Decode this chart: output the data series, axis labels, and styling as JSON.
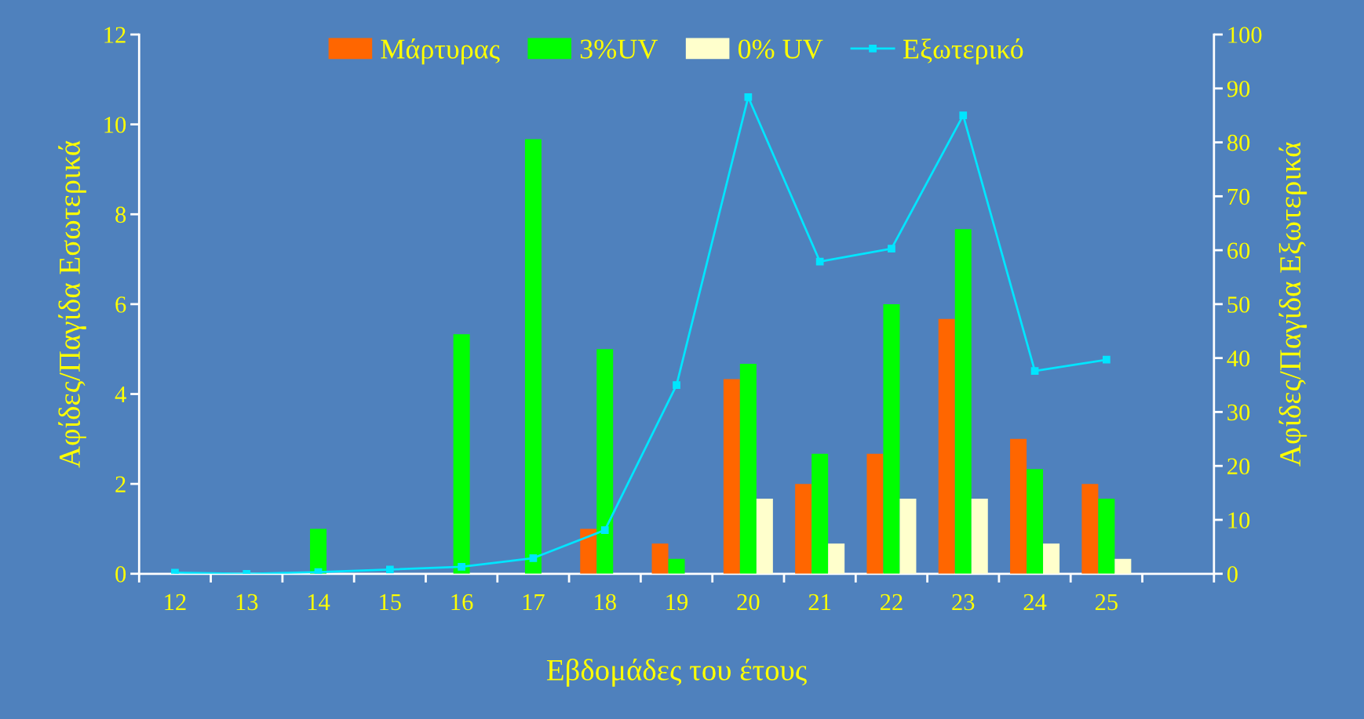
{
  "chart_data": {
    "type": "bar",
    "xlabel": "Εβδομάδες του έτους",
    "ylabel": "Αφίδες/Παγίδα Εσωτερικά",
    "y2label": "Αφίδες/Παγίδα Εξωτερικά",
    "categories": [
      "12",
      "13",
      "14",
      "15",
      "16",
      "17",
      "18",
      "19",
      "20",
      "21",
      "22",
      "23",
      "24",
      "25",
      null
    ],
    "series": [
      {
        "name": "Μάρτυρας",
        "color": "#ff6600",
        "values": [
          null,
          null,
          null,
          null,
          null,
          null,
          1.0,
          0.67,
          4.33,
          2.0,
          2.67,
          5.67,
          3.0,
          2.0,
          null
        ]
      },
      {
        "name": "3%UV",
        "color": "#00ff00",
        "values": [
          null,
          null,
          1.0,
          null,
          5.33,
          9.67,
          5.0,
          0.33,
          4.67,
          2.67,
          6.0,
          7.67,
          2.33,
          1.67,
          null
        ]
      },
      {
        "name": "0% UV",
        "color": "#ffffcc",
        "values": [
          null,
          null,
          null,
          null,
          null,
          null,
          null,
          null,
          1.67,
          0.67,
          1.67,
          1.67,
          0.67,
          0.33,
          null
        ]
      },
      {
        "name": "Εξωτερικό",
        "color": "#00e5ff",
        "type": "line",
        "axis": "y2",
        "marker": "square",
        "values": [
          0.2,
          0,
          0.3,
          0.8,
          1.3,
          2.9,
          8.1,
          35,
          88.4,
          57.9,
          60.3,
          85,
          37.6,
          39.7,
          null
        ]
      }
    ],
    "ylim": [
      0,
      12
    ],
    "yticks": [
      0,
      2,
      4,
      6,
      8,
      10,
      12
    ],
    "y2lim": [
      0,
      100
    ],
    "y2ticks": [
      0,
      10,
      20,
      30,
      40,
      50,
      60,
      70,
      80,
      90,
      100
    ],
    "grid": false,
    "legend": "top"
  }
}
